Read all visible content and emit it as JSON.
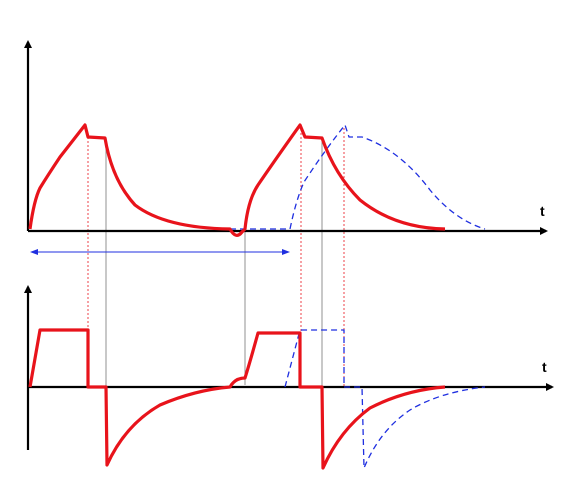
{
  "top_panel": {
    "x_axis_label": "t"
  },
  "bottom_panel": {
    "x_axis_label": "t"
  }
}
